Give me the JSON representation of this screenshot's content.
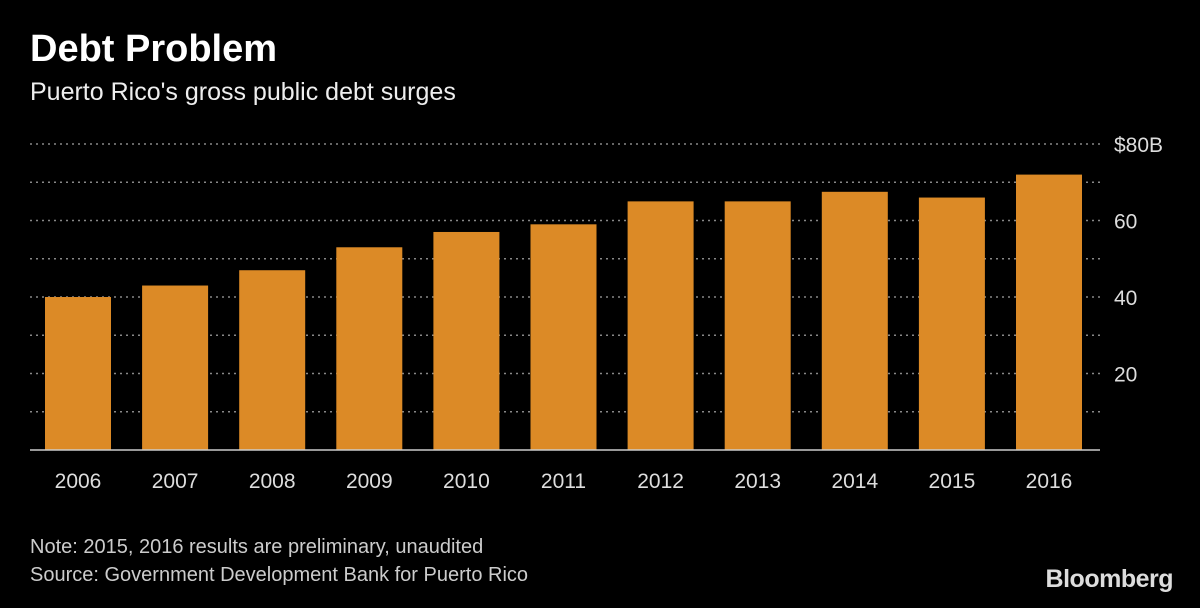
{
  "chart_data": {
    "type": "bar",
    "title": "Debt Problem",
    "subtitle": "Puerto Rico's gross public debt surges",
    "categories": [
      "2006",
      "2007",
      "2008",
      "2009",
      "2010",
      "2011",
      "2012",
      "2013",
      "2014",
      "2015",
      "2016"
    ],
    "values": [
      40,
      43,
      47,
      53,
      57,
      59,
      65,
      65,
      67.5,
      66,
      72
    ],
    "ylim": [
      0,
      80
    ],
    "yticks": [
      {
        "value": 20,
        "label": "20"
      },
      {
        "value": 40,
        "label": "40"
      },
      {
        "value": 60,
        "label": "60"
      },
      {
        "value": 80,
        "label": "$80B"
      }
    ],
    "grid": true,
    "xlabel": "",
    "ylabel": "",
    "bar_color": "#dc8a26"
  },
  "footer": {
    "note": "Note: 2015, 2016 results are preliminary, unaudited",
    "source": "Source: Government Development Bank for Puerto Rico",
    "logo": "Bloomberg"
  }
}
